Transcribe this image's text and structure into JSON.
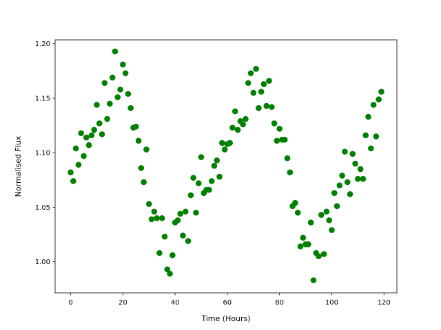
{
  "chart_data": {
    "type": "scatter",
    "xlabel": "Time (Hours)",
    "ylabel": "Normalised Flux",
    "color": "#008000",
    "x": [
      0,
      1,
      2,
      3,
      4,
      5,
      6,
      7,
      8,
      9,
      10,
      11,
      12,
      13,
      14,
      15,
      16,
      17,
      18,
      19,
      20,
      21,
      22,
      23,
      24,
      25,
      26,
      27,
      28,
      29,
      30,
      31,
      32,
      33,
      34,
      35,
      36,
      37,
      38,
      39,
      40,
      41,
      42,
      43,
      44,
      45,
      46,
      47,
      48,
      49,
      50,
      51,
      52,
      53,
      54,
      55,
      56,
      57,
      58,
      59,
      60,
      61,
      62,
      63,
      64,
      65,
      66,
      67,
      68,
      69,
      70,
      71,
      72,
      73,
      74,
      75,
      76,
      77,
      78,
      79,
      80,
      81,
      82,
      83,
      84,
      85,
      86,
      87,
      88,
      89,
      90,
      91,
      92,
      93,
      94,
      95,
      96,
      97,
      98,
      99,
      100,
      101,
      102,
      103,
      104,
      105,
      106,
      107,
      108,
      109,
      110,
      111,
      112,
      113,
      114,
      115,
      116,
      117,
      118,
      119
    ],
    "values": [
      1.082,
      1.074,
      1.104,
      1.089,
      1.118,
      1.097,
      1.114,
      1.107,
      1.116,
      1.121,
      1.144,
      1.127,
      1.117,
      1.164,
      1.131,
      1.145,
      1.169,
      1.193,
      1.151,
      1.158,
      1.181,
      1.173,
      1.154,
      1.141,
      1.123,
      1.124,
      1.111,
      1.086,
      1.073,
      1.103,
      1.053,
      1.039,
      1.046,
      1.04,
      1.008,
      1.04,
      1.023,
      0.993,
      0.989,
      1.006,
      1.036,
      1.038,
      1.044,
      1.024,
      1.046,
      1.019,
      1.061,
      1.077,
      1.045,
      1.072,
      1.096,
      1.063,
      1.066,
      1.066,
      1.074,
      1.088,
      1.093,
      1.078,
      1.109,
      1.103,
      1.108,
      1.109,
      1.123,
      1.138,
      1.121,
      1.129,
      1.126,
      1.131,
      1.164,
      1.173,
      1.155,
      1.177,
      1.141,
      1.156,
      1.163,
      1.143,
      1.166,
      1.142,
      1.127,
      1.111,
      1.122,
      1.112,
      1.112,
      1.095,
      1.082,
      1.051,
      1.054,
      1.045,
      1.014,
      1.022,
      1.016,
      1.016,
      1.036,
      0.983,
      1.008,
      1.005,
      1.043,
      1.007,
      1.046,
      1.038,
      1.029,
      1.063,
      1.051,
      1.07,
      1.079,
      1.101,
      1.073,
      1.062,
      1.099,
      1.09,
      1.076,
      1.085,
      1.076,
      1.116,
      1.133,
      1.104,
      1.144,
      1.115,
      1.149,
      1.156
    ],
    "xlim": [
      -5.95,
      124.95
    ],
    "xticks": [
      0,
      20,
      40,
      60,
      80,
      100,
      120
    ],
    "ylim": [
      0.9714,
      1.2036
    ],
    "yticks": [
      {
        "value": 1.0,
        "label": "1.00"
      },
      1.05,
      {
        "value": 1.1,
        "label": "1.10"
      },
      1.15,
      {
        "value": 1.2,
        "label": "1.20"
      }
    ]
  }
}
